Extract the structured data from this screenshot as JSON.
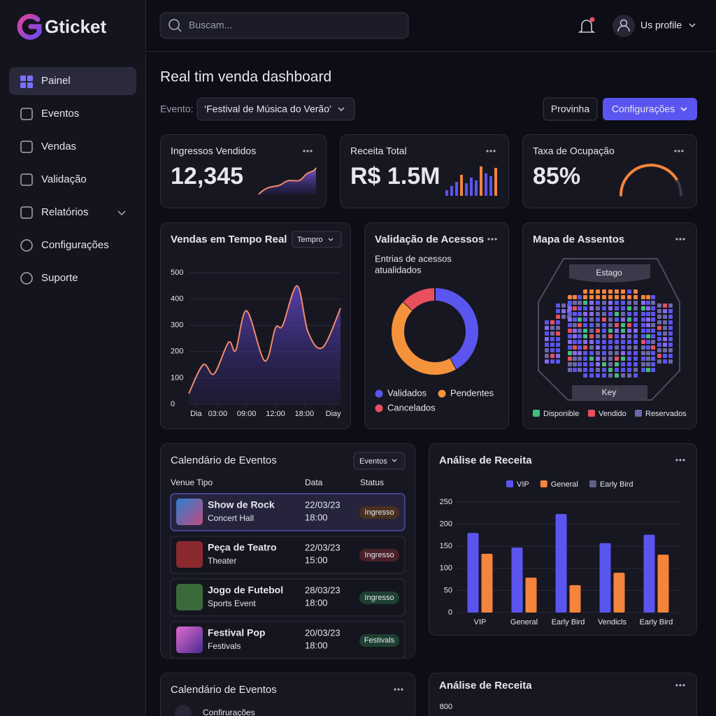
{
  "brand": "Gticket",
  "nav": [
    "Painel",
    "Eventos",
    "Vendas",
    "Validação",
    "Relatórios",
    "Configurações",
    "Suporte"
  ],
  "search_placeholder": "Buscam...",
  "profile": "Us profile",
  "page_title": "Real tim venda dashboard",
  "event_label": "Evento:",
  "event_value": "‘Festival de Música do Verão’",
  "buttons": [
    "Provinha",
    "Configurações"
  ],
  "kpis": [
    {
      "label": "Ingressos Vendidos",
      "value": "12,345"
    },
    {
      "label": "Receita Total",
      "value": "R$ 1.5M"
    },
    {
      "label": "Taxa de Ocupação",
      "value": "85%"
    }
  ],
  "sales_chart": {
    "type": "line",
    "title": "Vendas em Tempo Real",
    "filter": "Tempro",
    "x": [
      0,
      2,
      3.5,
      5.5,
      6.5,
      8,
      10.5,
      12,
      13,
      15,
      16.5,
      18.5,
      21
    ],
    "values": [
      40,
      150,
      115,
      235,
      205,
      355,
      165,
      290,
      300,
      450,
      275,
      215,
      365
    ],
    "xlim": [
      0,
      21
    ],
    "xticks": [
      {
        "value": 1,
        "label": "Dia"
      },
      {
        "value": 4,
        "label": "03:00"
      },
      {
        "value": 8,
        "label": "09:00"
      },
      {
        "value": 12,
        "label": "12:00"
      },
      {
        "value": 16,
        "label": "18:00"
      },
      {
        "value": 20,
        "label": "Diay"
      }
    ],
    "ylim": [
      0,
      500
    ],
    "yticks": [
      0,
      100,
      200,
      300,
      400,
      500
    ],
    "color": "#f08a6a",
    "grid": true
  },
  "access_chart": {
    "type": "donut",
    "title": "Validação de Acessos",
    "subtitle": [
      "Entrias de acessos",
      "atualidados"
    ],
    "categories": [
      "Validados",
      "Pendentes",
      "Cancelados"
    ],
    "values": [
      42,
      45,
      13
    ],
    "colors": [
      "#5b55f0",
      "#f5933c",
      "#e8505e"
    ]
  },
  "seat_map": {
    "title": "Mapa de Assentos",
    "stage": "Estago",
    "key": "Key",
    "legend": [
      {
        "label": "Disponible",
        "color": "#3fbf7f"
      },
      {
        "label": "Vendido",
        "color": "#e8505e"
      },
      {
        "label": "Reservados",
        "color": "#6c68a8"
      }
    ]
  },
  "calendar": {
    "title": "Calendário de Eventos",
    "filter": "Eventos",
    "columns": [
      "Venue Tipo",
      "Data",
      "Status"
    ],
    "rows": [
      {
        "name": "Show de Rock",
        "venue": "Concert Hall",
        "date": "22/03/23",
        "time": "18:00",
        "status": "Ingresso",
        "tone": "orange"
      },
      {
        "name": "Peça de Teatro",
        "venue": "Theater",
        "date": "22/03/23",
        "time": "15:00",
        "status": "Ingresso",
        "tone": "red"
      },
      {
        "name": "Jogo de Futebol",
        "venue": "Sports Event",
        "date": "28/03/23",
        "time": "18:00",
        "status": "Ingresso",
        "tone": "green"
      },
      {
        "name": "Festival Pop",
        "venue": "Festivals",
        "date": "20/03/23",
        "time": "18:00",
        "status": "Festivals",
        "tone": "green"
      }
    ]
  },
  "revenue_chart": {
    "type": "bar",
    "title": "Análise de Receita",
    "categories": [
      "VIP",
      "General",
      "Early Bird",
      "Vendicls",
      "Early Bird"
    ],
    "series": [
      {
        "name": "VIP",
        "color": "#5b55f0",
        "values": [
          180,
          147,
          223,
          157,
          176
        ]
      },
      {
        "name": "General",
        "color": "#f5843c",
        "values": [
          133,
          79,
          62,
          90,
          131
        ]
      },
      {
        "name": "Early Bird",
        "color": "#5e6080",
        "values": [
          null,
          null,
          null,
          null,
          null
        ]
      }
    ],
    "ylim": [
      0,
      250
    ],
    "yticks": [
      0,
      50,
      100,
      150,
      200,
      250
    ],
    "grid": true,
    "legend": "top"
  },
  "bottom_calendar": {
    "title": "Calendário de Eventos",
    "first_row": "Confirurações"
  },
  "bottom_revenue": {
    "title": "Análise de Receita",
    "yticks": [
      800
    ]
  }
}
